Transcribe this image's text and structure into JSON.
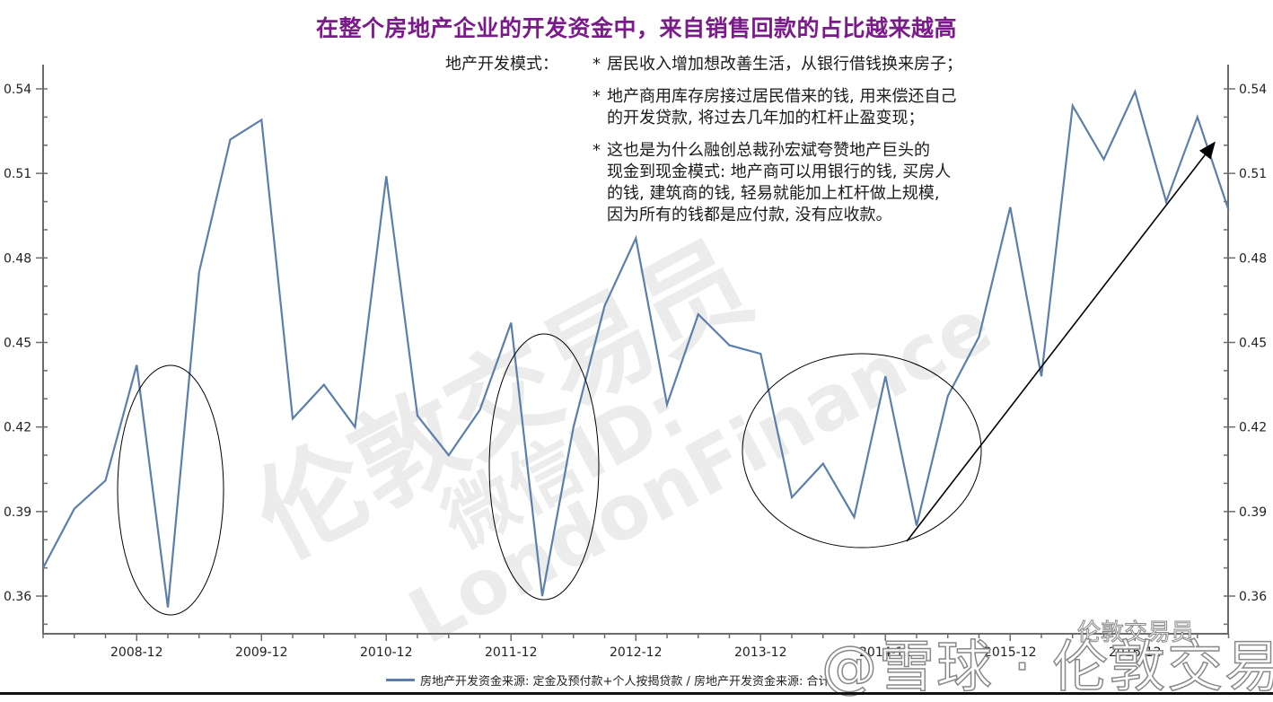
{
  "header": {
    "title": "在整个房地产企业的开发资金中，来自销售回款的占比越来越高"
  },
  "annotation": {
    "label": "地产开发模式：",
    "items": [
      {
        "star": "*",
        "lines": [
          "居民收入增加想改善生活，从银行借钱换来房子；"
        ]
      },
      {
        "star": "*",
        "lines": [
          "地产商用库存房接过居民借来的钱, 用来偿还自己",
          "的开发贷款, 将过去几年加的杠杆止盈变现；"
        ]
      },
      {
        "star": "*",
        "lines": [
          "这也是为什么融创总裁孙宏斌夸赞地产巨头的",
          "现金到现金模式: 地产商可以用银行的钱, 买房人",
          "的钱, 建筑商的钱, 轻易就能加上杠杆做上规模,",
          "因为所有的钱都是应付款, 没有应收款。"
        ]
      }
    ]
  },
  "legend": {
    "label": "房地产开发资金来源: 定金及预付款+个人按揭贷款 / 房地产开发资金来源: 合计"
  },
  "watermarks": {
    "diagonal_cn": "伦敦交易员",
    "diagonal_id": "微信ID:",
    "diagonal_en": "LondonFinance",
    "bottom_large": "@雪球 · 伦敦交易员",
    "bottom_small": "伦敦交易员"
  },
  "colors": {
    "title": "#7b1a8a",
    "series": "#5b7faa",
    "axis": "#6b6b6b",
    "annotation_shapes": "#000000"
  },
  "chart_data": {
    "type": "line",
    "title": "在整个房地产企业的开发资金中，来自销售回款的占比越来越高",
    "xlabel": "",
    "ylabel": "",
    "ylim": [
      0.35,
      0.55
    ],
    "y_ticks": [
      0.36,
      0.39,
      0.42,
      0.45,
      0.48,
      0.51,
      0.54
    ],
    "y_ticks_right": [
      0.36,
      0.39,
      0.42,
      0.45,
      0.48,
      0.51,
      0.54
    ],
    "x_tick_labels": [
      "2008-12",
      "2009-12",
      "2010-12",
      "2011-12",
      "2012-12",
      "2013-12",
      "2014-12",
      "2015-12",
      "2016-12"
    ],
    "grid": false,
    "legend_position": "bottom",
    "x": [
      "2008-03",
      "2008-06",
      "2008-09",
      "2008-12",
      "2009-03",
      "2009-06",
      "2009-09",
      "2009-12",
      "2010-03",
      "2010-06",
      "2010-09",
      "2010-12",
      "2011-03",
      "2011-06",
      "2011-09",
      "2011-12",
      "2012-03",
      "2012-06",
      "2012-09",
      "2012-12",
      "2013-03",
      "2013-06",
      "2013-09",
      "2013-12",
      "2014-03",
      "2014-06",
      "2014-09",
      "2014-12",
      "2015-03",
      "2015-06",
      "2015-09",
      "2015-12",
      "2016-03",
      "2016-06",
      "2016-09",
      "2016-12",
      "2017-03",
      "2017-06",
      "2017-09"
    ],
    "series": [
      {
        "name": "房地产开发资金来源: 定金及预付款+个人按揭贷款 / 房地产开发资金来源: 合计",
        "values": [
          0.37,
          0.391,
          0.401,
          0.442,
          0.356,
          0.475,
          0.522,
          0.529,
          0.423,
          0.435,
          0.42,
          0.509,
          0.424,
          0.41,
          0.426,
          0.457,
          0.36,
          0.42,
          0.463,
          0.487,
          0.428,
          0.46,
          0.449,
          0.446,
          0.395,
          0.407,
          0.388,
          0.438,
          0.385,
          0.431,
          0.452,
          0.498,
          0.438,
          0.534,
          0.515,
          0.539,
          0.5,
          0.53,
          0.497
        ]
      }
    ],
    "annotations": [
      {
        "type": "ellipse",
        "around": "2009-03 trough"
      },
      {
        "type": "ellipse",
        "around": "2012-03 trough"
      },
      {
        "type": "ellipse",
        "around": "2014 lows"
      },
      {
        "type": "arrow",
        "from": "2015-03",
        "to": "2017-06",
        "meaning": "upward trend"
      }
    ]
  }
}
